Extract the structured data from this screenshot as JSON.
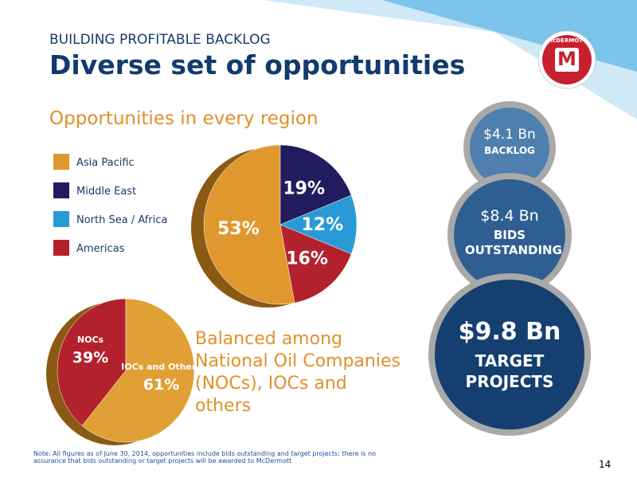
{
  "header": {
    "kicker": "BUILDING PROFITABLE BACKLOG",
    "title": "Diverse set of opportunities"
  },
  "logo": {
    "text": "McDERMOTT",
    "letter": "M"
  },
  "chart_data": [
    {
      "type": "pie",
      "title": "Opportunities in every region",
      "categories": [
        "Asia Pacific",
        "Middle East",
        "North Sea / Africa",
        "Americas"
      ],
      "values": [
        53,
        19,
        12,
        16
      ],
      "value_labels": [
        "53%",
        "19%",
        "12%",
        "16%"
      ],
      "colors": [
        "#e0982e",
        "#221c5e",
        "#2a9ad6",
        "#b3222c"
      ],
      "legend": true
    },
    {
      "type": "pie",
      "annotation": "Balanced among National Oil Companies (NOCs), IOCs and others",
      "categories": [
        "NOCs",
        "IOCs and Others"
      ],
      "values": [
        39,
        61
      ],
      "value_labels": [
        "39%",
        "61%"
      ],
      "colors": [
        "#b3222c",
        "#e0a035"
      ],
      "legend": false
    }
  ],
  "bubbles": [
    {
      "amount": "$4.1 Bn",
      "label": "BACKLOG"
    },
    {
      "amount": "$8.4 Bn",
      "label": "BIDS OUTSTANDING"
    },
    {
      "amount": "$9.8 Bn",
      "label": "TARGET PROJECTS"
    }
  ],
  "note": "Note: All figures as of June 30, 2014, opportunities include bids outstanding and target projects; there is no assurance that bids outstanding or target projects will be awarded to McDermott",
  "page_number": "14"
}
